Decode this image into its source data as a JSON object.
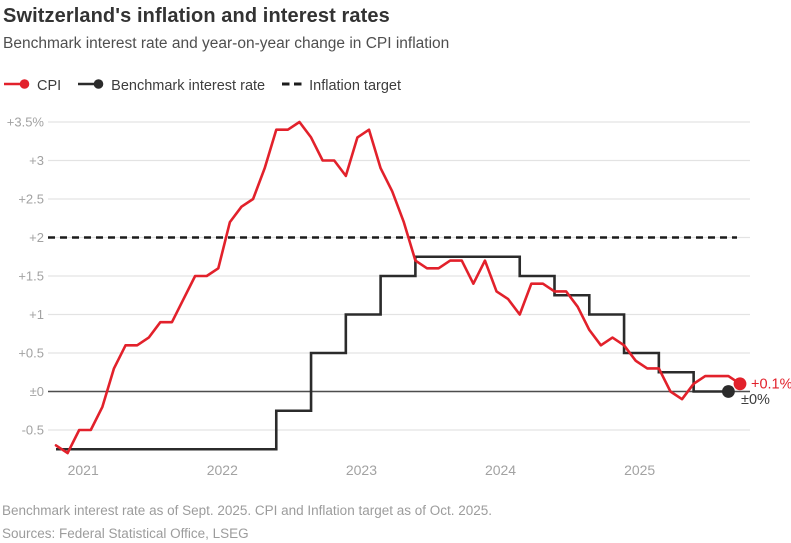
{
  "header": {
    "title": "Switzerland's inflation and interest rates",
    "subtitle": "Benchmark interest rate and year-on-year change in CPI inflation"
  },
  "legend": {
    "items": [
      {
        "label": "CPI",
        "marker": "line-dot",
        "color": "#e2212b"
      },
      {
        "label": "Benchmark interest rate",
        "marker": "line-dot",
        "color": "#2b2b2b"
      },
      {
        "label": "Inflation target",
        "marker": "dashes",
        "color": "#1c1c1c"
      }
    ]
  },
  "footer": {
    "note": "Benchmark interest rate as of Sept. 2025. CPI and Inflation target as of Oct. 2025.",
    "sources": "Sources: Federal Statistical Office, LSEG"
  },
  "colors": {
    "cpi_red": "#e2212b",
    "benchmark_black": "#2b2b2b",
    "target_dash": "#1c1c1c",
    "grid": "#e3e3e3",
    "zero_line": "#4d4d4d",
    "tick_text": "#a2a2a2",
    "end_label_dark": "#3c3c3c"
  },
  "chart_data": {
    "type": "line",
    "title": "Switzerland's inflation and interest rates",
    "subtitle": "Benchmark interest rate and year-on-year change in CPI inflation",
    "unit": "%",
    "ylim": [
      -0.9,
      3.7
    ],
    "grid": true,
    "legend_position": "top",
    "months": [
      "2020-11",
      "2020-12",
      "2021-01",
      "2021-02",
      "2021-03",
      "2021-04",
      "2021-05",
      "2021-06",
      "2021-07",
      "2021-08",
      "2021-09",
      "2021-10",
      "2021-11",
      "2021-12",
      "2022-01",
      "2022-02",
      "2022-03",
      "2022-04",
      "2022-05",
      "2022-06",
      "2022-07",
      "2022-08",
      "2022-09",
      "2022-10",
      "2022-11",
      "2022-12",
      "2023-01",
      "2023-02",
      "2023-03",
      "2023-04",
      "2023-05",
      "2023-06",
      "2023-07",
      "2023-08",
      "2023-09",
      "2023-10",
      "2023-11",
      "2023-12",
      "2024-01",
      "2024-02",
      "2024-03",
      "2024-04",
      "2024-05",
      "2024-06",
      "2024-07",
      "2024-08",
      "2024-09",
      "2024-10",
      "2024-11",
      "2024-12",
      "2025-01",
      "2025-02",
      "2025-03",
      "2025-04",
      "2025-05",
      "2025-06",
      "2025-07",
      "2025-08",
      "2025-09",
      "2025-10"
    ],
    "series": [
      {
        "name": "CPI",
        "color": "#e2212b",
        "style": "line",
        "values": [
          -0.7,
          -0.8,
          -0.5,
          -0.5,
          -0.2,
          0.3,
          0.6,
          0.6,
          0.7,
          0.9,
          0.9,
          1.2,
          1.5,
          1.5,
          1.6,
          2.2,
          2.4,
          2.5,
          2.9,
          3.4,
          3.4,
          3.5,
          3.3,
          3.0,
          3.0,
          2.8,
          3.3,
          3.4,
          2.9,
          2.6,
          2.2,
          1.7,
          1.6,
          1.6,
          1.7,
          1.7,
          1.4,
          1.7,
          1.3,
          1.2,
          1.0,
          1.4,
          1.4,
          1.3,
          1.3,
          1.1,
          0.8,
          0.6,
          0.7,
          0.6,
          0.4,
          0.3,
          0.3,
          0.0,
          -0.1,
          0.1,
          0.2,
          0.2,
          0.2,
          0.1
        ],
        "end_label": "+0.1%"
      },
      {
        "name": "Benchmark interest rate",
        "color": "#2b2b2b",
        "style": "step",
        "values": [
          -0.75,
          -0.75,
          -0.75,
          -0.75,
          -0.75,
          -0.75,
          -0.75,
          -0.75,
          -0.75,
          -0.75,
          -0.75,
          -0.75,
          -0.75,
          -0.75,
          -0.75,
          -0.75,
          -0.75,
          -0.75,
          -0.75,
          -0.25,
          -0.25,
          -0.25,
          0.5,
          0.5,
          0.5,
          1.0,
          1.0,
          1.0,
          1.5,
          1.5,
          1.5,
          1.75,
          1.75,
          1.75,
          1.75,
          1.75,
          1.75,
          1.75,
          1.75,
          1.75,
          1.5,
          1.5,
          1.5,
          1.25,
          1.25,
          1.25,
          1.0,
          1.0,
          1.0,
          0.5,
          0.5,
          0.5,
          0.25,
          0.25,
          0.25,
          0.0,
          0.0,
          0.0,
          0.0,
          null
        ],
        "end_label": "±0%"
      }
    ],
    "inflation_target": 2.0,
    "yticks": [
      {
        "v": 3.5,
        "label": "+3.5%"
      },
      {
        "v": 3.0,
        "label": "+3"
      },
      {
        "v": 2.5,
        "label": "+2.5"
      },
      {
        "v": 2.0,
        "label": "+2"
      },
      {
        "v": 1.5,
        "label": "+1.5"
      },
      {
        "v": 1.0,
        "label": "+1"
      },
      {
        "v": 0.5,
        "label": "+0.5"
      },
      {
        "v": 0.0,
        "label": "±0"
      },
      {
        "v": -0.5,
        "label": "-0.5"
      }
    ],
    "xticks": [
      {
        "month": "2021-01",
        "label": "2021"
      },
      {
        "month": "2022-01",
        "label": "2022"
      },
      {
        "month": "2023-01",
        "label": "2023"
      },
      {
        "month": "2024-01",
        "label": "2024"
      },
      {
        "month": "2025-01",
        "label": "2025"
      }
    ]
  }
}
